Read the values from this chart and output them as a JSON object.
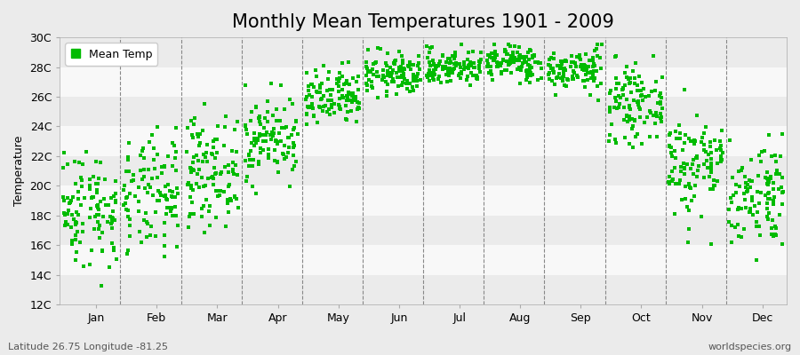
{
  "title": "Monthly Mean Temperatures 1901 - 2009",
  "ylabel": "Temperature",
  "subtitle_left": "Latitude 26.75 Longitude -81.25",
  "subtitle_right": "worldspecies.org",
  "ylim": [
    12,
    30
  ],
  "ytick_labels": [
    "12C",
    "14C",
    "16C",
    "18C",
    "20C",
    "22C",
    "24C",
    "26C",
    "28C",
    "30C"
  ],
  "ytick_values": [
    12,
    14,
    16,
    18,
    20,
    22,
    24,
    26,
    28,
    30
  ],
  "months": [
    "Jan",
    "Feb",
    "Mar",
    "Apr",
    "May",
    "Jun",
    "Jul",
    "Aug",
    "Sep",
    "Oct",
    "Nov",
    "Dec"
  ],
  "month_means": [
    18.5,
    19.2,
    21.0,
    23.2,
    25.8,
    27.5,
    28.0,
    28.3,
    27.8,
    25.5,
    21.5,
    19.5
  ],
  "month_stds": [
    2.0,
    2.0,
    1.8,
    1.4,
    1.0,
    0.7,
    0.6,
    0.6,
    0.7,
    1.2,
    1.8,
    1.8
  ],
  "month_mins": [
    12.5,
    13.5,
    15.0,
    19.5,
    22.5,
    25.5,
    26.2,
    26.2,
    25.5,
    22.0,
    15.0,
    15.0
  ],
  "month_maxs": [
    23.0,
    24.0,
    25.5,
    27.0,
    29.2,
    29.3,
    29.5,
    29.5,
    29.5,
    28.8,
    27.0,
    23.5
  ],
  "n_years": 109,
  "marker_color": "#00BB00",
  "marker": "s",
  "marker_size": 2.5,
  "bg_color": "#EBEBEB",
  "stripe_color": "#F8F8F8",
  "title_fontsize": 15,
  "axis_fontsize": 9,
  "legend_fontsize": 9,
  "seed": 42
}
